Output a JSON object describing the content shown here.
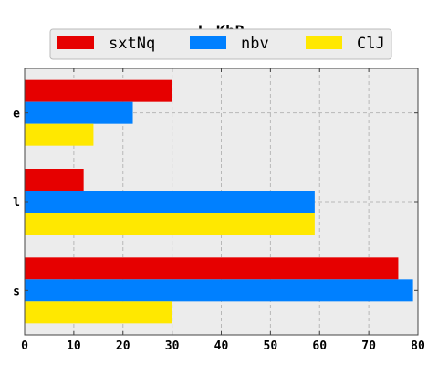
{
  "chart_data": {
    "type": "bar",
    "orientation": "horizontal",
    "title": "L_KbP",
    "categories": [
      "e",
      "l",
      "s"
    ],
    "series": [
      {
        "name": "sxtNq",
        "color": "#e60000",
        "values": [
          30,
          12,
          76
        ]
      },
      {
        "name": "nbv",
        "color": "#0080ff",
        "values": [
          22,
          59,
          79
        ]
      },
      {
        "name": "ClJ",
        "color": "#ffe800",
        "values": [
          14,
          59,
          30
        ]
      }
    ],
    "xlim": [
      0,
      80
    ],
    "xticks": [
      0,
      10,
      20,
      30,
      40,
      50,
      60,
      70,
      80
    ],
    "grid": true,
    "legend": "top-center",
    "plot_background": "#ececec"
  }
}
